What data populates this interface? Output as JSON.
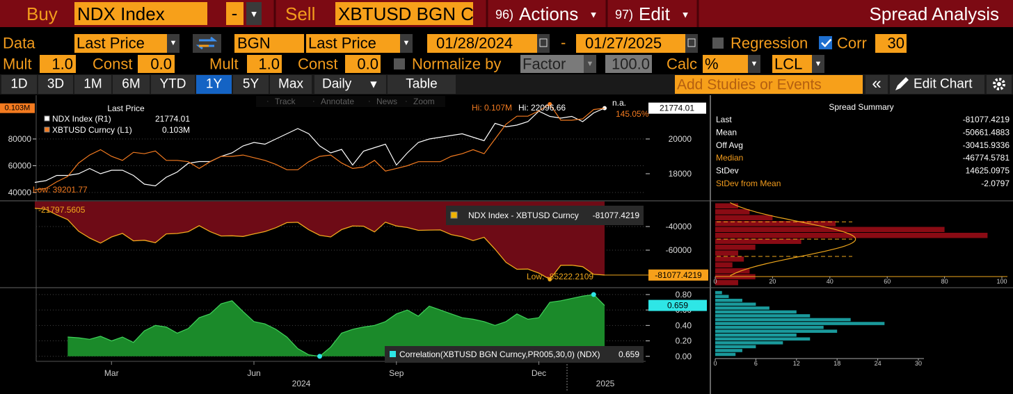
{
  "toolbar": {
    "buy_label": "Buy",
    "buy_security": "NDX Index",
    "operator": "-",
    "sell_label": "Sell",
    "sell_security": "XBTUSD BGN C",
    "actions_number": "96)",
    "actions": "Actions",
    "edit_number": "97)",
    "edit": "Edit",
    "title": "Spread Analysis"
  },
  "settings": {
    "data_label": "Data",
    "buy_field": "Last Price",
    "sell_source": "BGN",
    "sell_field": "Last Price",
    "start_date": "01/28/2024",
    "date_separator": "-",
    "end_date": "01/27/2025",
    "regression": "Regression",
    "regression_checked": false,
    "corr": "Corr",
    "corr_checked": true,
    "corr_window": "30",
    "mult_label": "Mult",
    "buy_mult": "1.0",
    "const_label": "Const",
    "buy_const": "0.0",
    "sell_mult": "1.0",
    "sell_const": "0.0",
    "normalize": "Normalize by",
    "normalize_checked": false,
    "factor": "Factor",
    "factor_value": "100.0",
    "calc_label": "Calc",
    "calc": "%",
    "currency": "LCL"
  },
  "ranges": {
    "tabs": [
      "1D",
      "3D",
      "1M",
      "6M",
      "YTD",
      "1Y",
      "5Y",
      "Max"
    ],
    "selected": "1Y",
    "periodicity": "Daily",
    "table": "Table",
    "studies_placeholder": "Add Studies or Events",
    "edit_chart": "Edit Chart"
  },
  "chart_tools": [
    "Track",
    "Annotate",
    "News",
    "Zoom"
  ],
  "chart_data": [
    {
      "type": "line",
      "legend_title": "Last Price",
      "ylim": [
        34300,
        112700
      ],
      "yticks": [
        40000,
        60000,
        80000
      ],
      "y2lim": [
        16480,
        22520
      ],
      "y2ticks": [
        18000,
        20000
      ],
      "grid": true,
      "series": [
        {
          "name": "NDX Index (R1)",
          "color": "#ffffff",
          "axis": "y2",
          "values": [
            17500,
            17600,
            17900,
            17900,
            18000,
            18300,
            18000,
            18200,
            18200,
            17900,
            17400,
            17300,
            17800,
            18100,
            18600,
            18700,
            18700,
            19000,
            19200,
            19600,
            19800,
            19700,
            20000,
            20300,
            20600,
            20300,
            19600,
            19200,
            19400,
            18500,
            19300,
            19500,
            19700,
            18500,
            19200,
            19800,
            20000,
            20100,
            20200,
            20300,
            20100,
            19900,
            20900,
            20700,
            20800,
            21000,
            21600,
            21300,
            21200,
            21300,
            21000,
            21500,
            21774.01
          ]
        },
        {
          "name": "XBTUSD Curncy (L1)",
          "color": "#f47b20",
          "axis": "y",
          "values": [
            42000,
            43000,
            48000,
            52000,
            62000,
            68000,
            72000,
            67000,
            64000,
            70000,
            69000,
            71000,
            64000,
            64000,
            63000,
            58000,
            63000,
            67000,
            67000,
            68000,
            66000,
            64000,
            61000,
            57000,
            57000,
            63000,
            67000,
            68000,
            62000,
            58000,
            59000,
            64000,
            56000,
            58000,
            60000,
            63000,
            63000,
            63000,
            67000,
            69000,
            72000,
            69000,
            80000,
            91000,
            97000,
            97000,
            101000,
            106000,
            94000,
            94000,
            95000,
            102000,
            103000
          ],
          "value_labels": [
            null,
            null,
            null,
            null,
            null,
            null,
            null,
            null,
            null,
            null,
            null,
            null,
            null,
            null,
            null,
            null,
            null,
            null,
            null,
            null,
            null,
            null,
            null,
            null,
            null,
            null,
            null,
            null,
            null,
            null,
            null,
            null,
            null,
            null,
            null,
            null,
            null,
            null,
            null,
            null,
            null,
            null,
            null,
            null,
            null,
            null,
            null,
            null,
            null,
            null,
            null,
            null,
            "0.103M"
          ]
        }
      ],
      "annotations": [
        "Hi: 0.107M",
        "Hi: 22096.66",
        "n.a.",
        "145.05%",
        "Low: 39201.77"
      ]
    },
    {
      "type": "area",
      "ylim": [
        -90600,
        -18800
      ],
      "yticks": [
        -40000,
        -60000
      ],
      "grid": true,
      "series": [
        {
          "name": "NDX Index - XBTUSD Curncy",
          "color": "#f0a81c",
          "fill": "#6e0b16",
          "values": [
            -24500,
            -25400,
            -30100,
            -34100,
            -44000,
            -49700,
            -54000,
            -48800,
            -45800,
            -52100,
            -51600,
            -53700,
            -46200,
            -45900,
            -44400,
            -39300,
            -44300,
            -48000,
            -47800,
            -48400,
            -46200,
            -44300,
            -41000,
            -36700,
            -36400,
            -42700,
            -47400,
            -48800,
            -42600,
            -39500,
            -39700,
            -44500,
            -36300,
            -39500,
            -40800,
            -43200,
            -43000,
            -42900,
            -46800,
            -48700,
            -51900,
            -49100,
            -59100,
            -70300,
            -76200,
            -76000,
            -79400,
            -84700,
            -72800,
            -72700,
            -74000,
            -80500,
            -81077.4219
          ]
        }
      ],
      "annotations": [
        "-21797.5605",
        "Low: -85222.2109"
      ],
      "histogram": {
        "bins": [
          -90000,
          -85000,
          -80000,
          -75000,
          -70000,
          -65000,
          -60000,
          -55000,
          -50000,
          -45000,
          -40000,
          -35000,
          -30000,
          -25000,
          -20000
        ],
        "counts": [
          8,
          14,
          12,
          6,
          10,
          8,
          14,
          30,
          95,
          80,
          42,
          20,
          12,
          8
        ],
        "color": "#8a0b14",
        "curve_color": "#f0a81c",
        "xlim": [
          0,
          100
        ],
        "xticks": [
          0,
          20,
          40,
          60,
          80,
          100
        ]
      }
    },
    {
      "type": "area",
      "ylim": [
        -0.02,
        0.88
      ],
      "yticks": [
        {
          "value": 0,
          "label": "0.00"
        },
        {
          "value": 0.2,
          "label": "0.20"
        },
        {
          "value": 0.4,
          "label": "0.40"
        },
        {
          "value": 0.6,
          "label": "0.60"
        },
        {
          "value": 0.8,
          "label": "0.80"
        }
      ],
      "grid": true,
      "categories": [
        null,
        null,
        null,
        null,
        null,
        null,
        null,
        "Mar",
        null,
        null,
        null,
        null,
        null,
        null,
        null,
        null,
        null,
        null,
        null,
        null,
        "Jun",
        null,
        null,
        null,
        null,
        null,
        null,
        null,
        null,
        null,
        null,
        null,
        null,
        "Sep",
        null,
        null,
        null,
        null,
        null,
        null,
        null,
        null,
        null,
        null,
        null,
        null,
        "Dec",
        null,
        null,
        null,
        null,
        null,
        null
      ],
      "year_labels": [
        "2024",
        "2025"
      ],
      "series": [
        {
          "name": "Correlation(XBTUSD BGN Curncy,PR005,30,0) (NDX)",
          "color": "#3fd35a",
          "fill": "#1b8a2a",
          "marker_color": "#2ee6e6",
          "values": [
            null,
            null,
            null,
            0.25,
            0.24,
            0.22,
            0.26,
            0.2,
            0.25,
            0.18,
            0.33,
            0.4,
            0.38,
            0.3,
            0.36,
            0.5,
            0.55,
            0.68,
            0.72,
            0.58,
            0.45,
            0.42,
            0.35,
            0.25,
            0.1,
            0.02,
            0.0,
            0.12,
            0.3,
            0.35,
            0.38,
            0.4,
            0.45,
            0.55,
            0.6,
            0.52,
            0.65,
            0.6,
            0.55,
            0.5,
            0.48,
            0.45,
            0.4,
            0.45,
            0.55,
            0.48,
            0.5,
            0.7,
            0.72,
            0.75,
            0.78,
            0.8,
            0.659
          ]
        }
      ],
      "histogram": {
        "bins": [
          0,
          0.05,
          0.1,
          0.15,
          0.2,
          0.25,
          0.3,
          0.35,
          0.4,
          0.45,
          0.5,
          0.55,
          0.6,
          0.65,
          0.7,
          0.75,
          0.8,
          0.85
        ],
        "counts": [
          3,
          4,
          6,
          10,
          14,
          12,
          18,
          16,
          25,
          20,
          14,
          12,
          8,
          6,
          4,
          2,
          1
        ],
        "color": "#1a9a9c",
        "xlim": [
          0,
          30
        ],
        "xticks": [
          0,
          6,
          12,
          18,
          24,
          30
        ]
      }
    }
  ],
  "spread_summary": {
    "title": "Spread Summary",
    "rows": [
      {
        "label": "Last",
        "value": -81077.4219,
        "color": "#ffffff"
      },
      {
        "label": "Mean",
        "value": -50661.4883,
        "color": "#ffffff"
      },
      {
        "label": "Off Avg",
        "value": -30415.9336,
        "color": "#ffffff"
      },
      {
        "label": "Median",
        "value": -46774.5781,
        "color": "#f39c1d"
      },
      {
        "label": "StDev",
        "value": 14625.0975,
        "color": "#ffffff"
      },
      {
        "label": "StDev from Mean",
        "value": -2.0797,
        "color": "#f39c1d"
      }
    ]
  }
}
